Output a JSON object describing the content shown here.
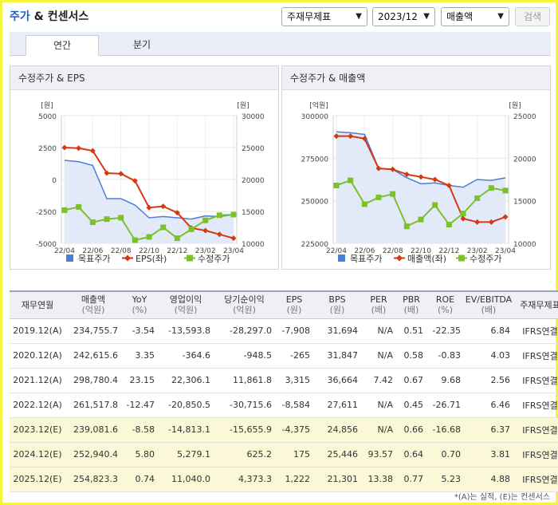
{
  "header": {
    "title_highlight": "주가",
    "title_rest": " & 컨센서스"
  },
  "controls": {
    "basis_select": "주재무제표",
    "period_select": "2023/12",
    "metric_select": "매출액",
    "search_button": "검색"
  },
  "tabs": [
    {
      "label": "연간"
    },
    {
      "label": "분기"
    }
  ],
  "charts": {
    "left": {
      "title": "수정주가 & EPS",
      "left_unit": "[원]",
      "right_unit": "[원]",
      "left_ticks": [
        "5000",
        "2500",
        "0",
        "-2500",
        "-5000"
      ],
      "right_ticks": [
        "30000",
        "25000",
        "20000",
        "15000",
        "10000"
      ],
      "x_ticks": [
        "22/04",
        "22/06",
        "22/08",
        "22/10",
        "22/12",
        "23/02",
        "23/04"
      ],
      "legend": [
        "목표주가",
        "EPS(좌)",
        "수정주가"
      ]
    },
    "right": {
      "title": "수정주가 & 매출액",
      "left_unit": "[억원]",
      "right_unit": "[원]",
      "left_ticks": [
        "300000",
        "275000",
        "250000",
        "225000"
      ],
      "right_ticks": [
        "25000",
        "20000",
        "15000",
        "10000"
      ],
      "x_ticks": [
        "22/04",
        "22/06",
        "22/08",
        "22/10",
        "22/12",
        "23/02",
        "23/04"
      ],
      "legend": [
        "목표주가",
        "매출액(좌)",
        "수정주가"
      ]
    }
  },
  "chart_data": [
    {
      "type": "line",
      "title": "수정주가 & EPS",
      "x": [
        "22/04",
        "22/05",
        "22/06",
        "22/07",
        "22/08",
        "22/09",
        "22/10",
        "22/11",
        "22/12",
        "23/01",
        "23/02",
        "23/03",
        "23/04"
      ],
      "left_axis": {
        "unit": "[원]",
        "ylim": [
          -5000,
          5000
        ]
      },
      "right_axis": {
        "unit": "[원]",
        "ylim": [
          10000,
          30000
        ]
      },
      "series": [
        {
          "name": "목표주가",
          "axis": "right",
          "style": "area",
          "values": [
            23000,
            22800,
            22200,
            17000,
            17000,
            16000,
            14000,
            14200,
            14000,
            13800,
            14300,
            14200,
            14500
          ]
        },
        {
          "name": "EPS(좌)",
          "axis": "left",
          "style": "line",
          "values": [
            2500,
            2450,
            2250,
            500,
            450,
            -100,
            -2200,
            -2100,
            -2600,
            -3800,
            -4000,
            -4300,
            -4600
          ]
        },
        {
          "name": "수정주가",
          "axis": "right",
          "style": "line",
          "values": [
            15200,
            15700,
            13300,
            13800,
            14000,
            10500,
            11000,
            12500,
            10800,
            12200,
            13600,
            14400,
            14500
          ]
        }
      ],
      "legend_position": "bottom",
      "grid": true,
      "colors": {
        "목표주가": "#4a7ed9",
        "EPS(좌)": "#d43a12",
        "수정주가": "#7cc02a"
      }
    },
    {
      "type": "line",
      "title": "수정주가 & 매출액",
      "x": [
        "22/04",
        "22/05",
        "22/06",
        "22/07",
        "22/08",
        "22/09",
        "22/10",
        "22/11",
        "22/12",
        "23/01",
        "23/02",
        "23/03",
        "23/04"
      ],
      "left_axis": {
        "unit": "[억원]",
        "ylim": [
          225000,
          300000
        ]
      },
      "right_axis": {
        "unit": "[원]",
        "ylim": [
          10000,
          25000
        ]
      },
      "series": [
        {
          "name": "목표주가",
          "axis": "right",
          "style": "area",
          "values": [
            23100,
            23000,
            22800,
            18800,
            18700,
            17700,
            17000,
            17100,
            16800,
            16600,
            17500,
            17400,
            17700
          ]
        },
        {
          "name": "매출액(좌)",
          "axis": "left",
          "style": "line",
          "values": [
            288000,
            288000,
            286500,
            269000,
            268500,
            265500,
            264000,
            262500,
            259000,
            239500,
            237500,
            237500,
            240500
          ]
        },
        {
          "name": "수정주가",
          "axis": "right",
          "style": "line",
          "values": [
            16800,
            17400,
            14600,
            15400,
            15800,
            12000,
            12800,
            14500,
            12200,
            13500,
            15300,
            16500,
            16200
          ]
        }
      ],
      "legend_position": "bottom",
      "grid": true,
      "colors": {
        "목표주가": "#4a7ed9",
        "매출액(좌)": "#d43a12",
        "수정주가": "#7cc02a"
      }
    }
  ],
  "table": {
    "headers": [
      {
        "line1": "재무연월",
        "line2": ""
      },
      {
        "line1": "매출액",
        "line2": "(억원)"
      },
      {
        "line1": "YoY",
        "line2": "(%)"
      },
      {
        "line1": "영업이익",
        "line2": "(억원)"
      },
      {
        "line1": "당기순이익",
        "line2": "(억원)"
      },
      {
        "line1": "EPS",
        "line2": "(원)"
      },
      {
        "line1": "BPS",
        "line2": "(원)"
      },
      {
        "line1": "PER",
        "line2": "(배)"
      },
      {
        "line1": "PBR",
        "line2": "(배)"
      },
      {
        "line1": "ROE",
        "line2": "(%)"
      },
      {
        "line1": "EV/EBITDA",
        "line2": "(배)"
      },
      {
        "line1": "주재무제표",
        "line2": ""
      }
    ],
    "rows": [
      {
        "estimate": false,
        "cells": [
          "2019.12(A)",
          "234,755.7",
          "-3.54",
          "-13,593.8",
          "-28,297.0",
          "-7,908",
          "31,694",
          "N/A",
          "0.51",
          "-22.35",
          "6.84",
          "IFRS연결"
        ]
      },
      {
        "estimate": false,
        "cells": [
          "2020.12(A)",
          "242,615.6",
          "3.35",
          "-364.6",
          "-948.5",
          "-265",
          "31,847",
          "N/A",
          "0.58",
          "-0.83",
          "4.03",
          "IFRS연결"
        ]
      },
      {
        "estimate": false,
        "cells": [
          "2021.12(A)",
          "298,780.4",
          "23.15",
          "22,306.1",
          "11,861.8",
          "3,315",
          "36,664",
          "7.42",
          "0.67",
          "9.68",
          "2.56",
          "IFRS연결"
        ]
      },
      {
        "estimate": false,
        "cells": [
          "2022.12(A)",
          "261,517.8",
          "-12.47",
          "-20,850.5",
          "-30,715.6",
          "-8,584",
          "27,611",
          "N/A",
          "0.45",
          "-26.71",
          "6.46",
          "IFRS연결"
        ]
      },
      {
        "estimate": true,
        "cells": [
          "2023.12(E)",
          "239,081.6",
          "-8.58",
          "-14,813.1",
          "-15,655.9",
          "-4,375",
          "24,856",
          "N/A",
          "0.66",
          "-16.68",
          "6.37",
          "IFRS연결"
        ]
      },
      {
        "estimate": true,
        "cells": [
          "2024.12(E)",
          "252,940.4",
          "5.80",
          "5,279.1",
          "625.2",
          "175",
          "25,446",
          "93.57",
          "0.64",
          "0.70",
          "3.81",
          "IFRS연결"
        ]
      },
      {
        "estimate": true,
        "cells": [
          "2025.12(E)",
          "254,823.3",
          "0.74",
          "11,040.0",
          "4,373.3",
          "1,222",
          "21,301",
          "13.38",
          "0.77",
          "5.23",
          "4.88",
          "IFRS연결"
        ]
      }
    ]
  },
  "footnote": "*(A)는 실적, (E)는 컨센서스"
}
